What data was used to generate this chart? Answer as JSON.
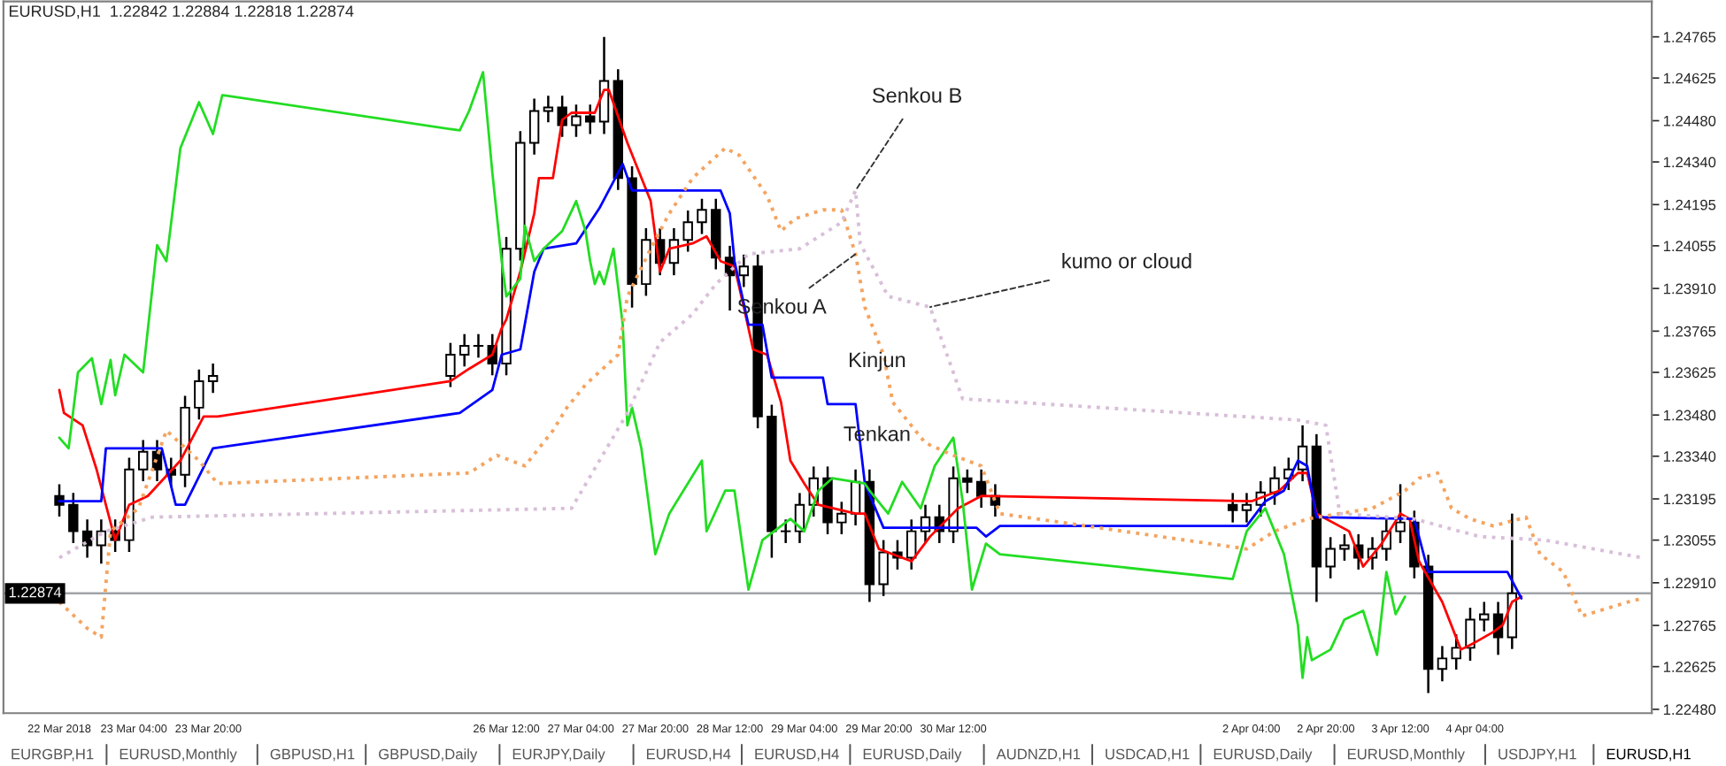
{
  "chart_data": {
    "type": "candlestick",
    "title": "EURUSD,H1  1.22842 1.22884 1.22818 1.22874",
    "xlim": [
      "2018-03-22T00:00",
      "2018-04-05T18:00"
    ],
    "xticks": [
      {
        "value": "2018-03-22T12:00",
        "label": "22 Mar 2018"
      },
      {
        "value": "2018-03-23T04:00",
        "label": "23 Mar 04:00"
      },
      {
        "value": "2018-03-23T20:00",
        "label": "23 Mar 20:00"
      },
      {
        "value": "2018-03-26T12:00",
        "label": "26 Mar 12:00"
      },
      {
        "value": "2018-03-27T04:00",
        "label": "27 Mar 04:00"
      },
      {
        "value": "2018-03-27T20:00",
        "label": "27 Mar 20:00"
      },
      {
        "value": "2018-03-28T12:00",
        "label": "28 Mar 12:00"
      },
      {
        "value": "2018-03-29T04:00",
        "label": "29 Mar 04:00"
      },
      {
        "value": "2018-03-29T20:00",
        "label": "29 Mar 20:00"
      },
      {
        "value": "2018-03-30T12:00",
        "label": "30 Mar 12:00"
      },
      {
        "value": "2018-04-02T04:00",
        "label": "2 Apr 04:00"
      },
      {
        "value": "2018-04-02T20:00",
        "label": "2 Apr 20:00"
      },
      {
        "value": "2018-04-03T12:00",
        "label": "3 Apr 12:00"
      },
      {
        "value": "2018-04-04T04:00",
        "label": "4 Apr 04:00"
      }
    ],
    "ylim": [
      1.22467,
      1.24885
    ],
    "yticks": [
      {
        "value": 1.2248,
        "label": "1.22480"
      },
      {
        "value": 1.22625,
        "label": "1.22625"
      },
      {
        "value": 1.22765,
        "label": "1.22765"
      },
      {
        "value": 1.2291,
        "label": "1.22910"
      },
      {
        "value": 1.23055,
        "label": "1.23055"
      },
      {
        "value": 1.23195,
        "label": "1.23195"
      },
      {
        "value": 1.2334,
        "label": "1.23340"
      },
      {
        "value": 1.2348,
        "label": "1.23480"
      },
      {
        "value": 1.23625,
        "label": "1.23625"
      },
      {
        "value": 1.23765,
        "label": "1.23765"
      },
      {
        "value": 1.2391,
        "label": "1.23910"
      },
      {
        "value": 1.24055,
        "label": "1.24055"
      },
      {
        "value": 1.24195,
        "label": "1.24195"
      },
      {
        "value": 1.2434,
        "label": "1.24340"
      },
      {
        "value": 1.2448,
        "label": "1.24480"
      },
      {
        "value": 1.24625,
        "label": "1.24625"
      },
      {
        "value": 1.24765,
        "label": "1.24765"
      }
    ],
    "series": [
      {
        "color": "#000000",
        "x": [
          "2018-03-22T12:00",
          "2018-03-22T15:00",
          "2018-03-22T18:00",
          "2018-03-22T21:00",
          "2018-03-23T00:00",
          "2018-03-23T03:00",
          "2018-03-23T06:00",
          "2018-03-23T09:00",
          "2018-03-23T12:00",
          "2018-03-23T15:00",
          "2018-03-23T18:00",
          "2018-03-23T21:00",
          "2018-03-26T00:00",
          "2018-03-26T03:00",
          "2018-03-26T06:00",
          "2018-03-26T09:00",
          "2018-03-26T12:00",
          "2018-03-26T15:00",
          "2018-03-26T18:00",
          "2018-03-26T21:00",
          "2018-03-27T00:00",
          "2018-03-27T03:00",
          "2018-03-27T06:00",
          "2018-03-27T09:00",
          "2018-03-27T12:00",
          "2018-03-27T15:00",
          "2018-03-27T18:00",
          "2018-03-27T21:00",
          "2018-03-28T00:00",
          "2018-03-28T03:00",
          "2018-03-28T06:00",
          "2018-03-28T09:00",
          "2018-03-28T12:00",
          "2018-03-28T15:00",
          "2018-03-28T18:00",
          "2018-03-28T21:00",
          "2018-03-29T00:00",
          "2018-03-29T03:00",
          "2018-03-29T06:00",
          "2018-03-29T09:00",
          "2018-03-29T12:00",
          "2018-03-29T15:00",
          "2018-03-29T18:00",
          "2018-03-29T21:00",
          "2018-03-30T00:00",
          "2018-03-30T03:00",
          "2018-03-30T06:00",
          "2018-03-30T09:00",
          "2018-03-30T12:00",
          "2018-03-30T15:00",
          "2018-03-30T18:00",
          "2018-03-30T21:00",
          "2018-04-02T00:00",
          "2018-04-02T03:00",
          "2018-04-02T06:00",
          "2018-04-02T09:00",
          "2018-04-02T12:00",
          "2018-04-02T15:00",
          "2018-04-02T18:00",
          "2018-04-02T21:00",
          "2018-04-03T00:00",
          "2018-04-03T03:00",
          "2018-04-03T06:00",
          "2018-04-03T09:00",
          "2018-04-03T12:00",
          "2018-04-03T15:00",
          "2018-04-03T18:00",
          "2018-04-03T21:00",
          "2018-04-04T00:00",
          "2018-04-04T03:00",
          "2018-04-04T06:00",
          "2018-04-04T09:00",
          "2018-04-04T12:00"
        ],
        "ohlc": [
          [
            1.23205,
            1.23245,
            1.23135,
            1.23175
          ],
          [
            1.23175,
            1.23215,
            1.23045,
            1.23085
          ],
          [
            1.23085,
            1.23125,
            1.22995,
            1.23037
          ],
          [
            1.23037,
            1.23125,
            1.22975,
            1.23085
          ],
          [
            1.23085,
            1.23125,
            1.23015,
            1.23055
          ],
          [
            1.23055,
            1.23335,
            1.23015,
            1.23295
          ],
          [
            1.23295,
            1.23395,
            1.23255,
            1.23355
          ],
          [
            1.23355,
            1.23395,
            1.23255,
            1.23295
          ],
          [
            1.23295,
            1.23335,
            1.23235,
            1.23277
          ],
          [
            1.23277,
            1.23545,
            1.23235,
            1.23505
          ],
          [
            1.23505,
            1.23635,
            1.23465,
            1.23595
          ],
          [
            1.23595,
            1.23655,
            1.23555,
            1.23613
          ],
          [
            1.23613,
            1.23725,
            1.23575,
            1.23685
          ],
          [
            1.23685,
            1.23755,
            1.23645,
            1.23715
          ],
          [
            1.23715,
            1.23755,
            1.23675,
            1.23715
          ],
          [
            1.23715,
            1.23755,
            1.23615,
            1.23655
          ],
          [
            1.23655,
            1.24085,
            1.23615,
            1.24045
          ],
          [
            1.24045,
            1.24445,
            1.24005,
            1.24405
          ],
          [
            1.24405,
            1.24555,
            1.24365,
            1.24513
          ],
          [
            1.24513,
            1.24565,
            1.24475,
            1.24525
          ],
          [
            1.24525,
            1.24565,
            1.24425,
            1.24465
          ],
          [
            1.24465,
            1.24535,
            1.24425,
            1.24495
          ],
          [
            1.24495,
            1.24535,
            1.24435,
            1.24477
          ],
          [
            1.24477,
            1.24765,
            1.24435,
            1.24615
          ],
          [
            1.24615,
            1.24655,
            1.24245,
            1.24285
          ],
          [
            1.24285,
            1.24325,
            1.23845,
            1.23925
          ],
          [
            1.23925,
            1.24115,
            1.23885,
            1.24075
          ],
          [
            1.24075,
            1.24115,
            1.23955,
            1.23997
          ],
          [
            1.23997,
            1.24115,
            1.23955,
            1.24075
          ],
          [
            1.24075,
            1.24175,
            1.24035,
            1.24135
          ],
          [
            1.24135,
            1.24215,
            1.24095,
            1.24177
          ],
          [
            1.24177,
            1.24215,
            1.23975,
            1.24015
          ],
          [
            1.24015,
            1.24055,
            1.23835,
            1.23955
          ],
          [
            1.23955,
            1.24025,
            1.23915,
            1.23985
          ],
          [
            1.23985,
            1.24025,
            1.23435,
            1.23475
          ],
          [
            1.23475,
            1.23515,
            1.22995,
            1.23085
          ],
          [
            1.23085,
            1.23125,
            1.23045,
            1.23085
          ],
          [
            1.23085,
            1.23215,
            1.23045,
            1.23175
          ],
          [
            1.23175,
            1.23305,
            1.23135,
            1.23265
          ],
          [
            1.23265,
            1.23305,
            1.23075,
            1.23115
          ],
          [
            1.23115,
            1.23185,
            1.23075,
            1.23145
          ],
          [
            1.23145,
            1.23295,
            1.23105,
            1.23253
          ],
          [
            1.23253,
            1.23295,
            1.22845,
            1.22905
          ],
          [
            1.22905,
            1.23055,
            1.22865,
            1.23013
          ],
          [
            1.23013,
            1.23055,
            1.22955,
            1.22995
          ],
          [
            1.22995,
            1.23125,
            1.22955,
            1.23085
          ],
          [
            1.23085,
            1.23175,
            1.23045,
            1.23133
          ],
          [
            1.23133,
            1.23175,
            1.23045,
            1.23085
          ],
          [
            1.23085,
            1.23305,
            1.23045,
            1.23265
          ],
          [
            1.23265,
            1.23295,
            1.23215,
            1.23253
          ],
          [
            1.23253,
            1.23295,
            1.23165,
            1.23205
          ],
          [
            1.23205,
            1.23245,
            1.23135,
            1.23175
          ],
          [
            1.23175,
            1.23215,
            1.23115,
            1.23157
          ],
          [
            1.23157,
            1.23215,
            1.23115,
            1.23175
          ],
          [
            1.23175,
            1.23255,
            1.23135,
            1.23217
          ],
          [
            1.23217,
            1.23305,
            1.23175,
            1.23265
          ],
          [
            1.23265,
            1.23335,
            1.23225,
            1.23295
          ],
          [
            1.23295,
            1.23445,
            1.23255,
            1.23373
          ],
          [
            1.23373,
            1.23415,
            1.22845,
            1.22965
          ],
          [
            1.22965,
            1.23065,
            1.22925,
            1.23025
          ],
          [
            1.23025,
            1.23075,
            1.22985,
            1.23037
          ],
          [
            1.23037,
            1.23075,
            1.22955,
            1.22995
          ],
          [
            1.22995,
            1.23065,
            1.22955,
            1.23025
          ],
          [
            1.23025,
            1.23125,
            1.22985,
            1.23085
          ],
          [
            1.23085,
            1.23245,
            1.23045,
            1.23115
          ],
          [
            1.23115,
            1.23155,
            1.22925,
            1.22965
          ],
          [
            1.22965,
            1.23005,
            1.22535,
            1.22617
          ],
          [
            1.22617,
            1.22695,
            1.22575,
            1.22653
          ],
          [
            1.22653,
            1.22735,
            1.22615,
            1.22689
          ],
          [
            1.22689,
            1.22825,
            1.22645,
            1.22785
          ],
          [
            1.22785,
            1.22845,
            1.22745,
            1.22803
          ],
          [
            1.22803,
            1.22845,
            1.22665,
            1.22725
          ],
          [
            1.22725,
            1.23145,
            1.22685,
            1.22874
          ]
        ]
      },
      {
        "type": "line",
        "color": "#ff0000",
        "line_style": "solid",
        "x": [
          "2018-03-22T12:00",
          "2018-03-22T13:00",
          "2018-03-22T17:00",
          "2018-03-22T20:00",
          "2018-03-23T00:00",
          "2018-03-23T03:00",
          "2018-03-23T07:00",
          "2018-03-23T14:00",
          "2018-03-23T19:00",
          "2018-03-23T22:00",
          "2018-03-26T00:00",
          "2018-03-26T04:00",
          "2018-03-26T09:00",
          "2018-03-26T11:00",
          "2018-03-26T12:00",
          "2018-03-26T15:00",
          "2018-03-26T18:00",
          "2018-03-26T19:00",
          "2018-03-26T22:00",
          "2018-03-27T00:00",
          "2018-03-27T02:00",
          "2018-03-27T07:00",
          "2018-03-27T09:00",
          "2018-03-27T10:00",
          "2018-03-27T14:00",
          "2018-03-27T19:00",
          "2018-03-27T21:00",
          "2018-03-27T23:00",
          "2018-03-28T04:00",
          "2018-03-28T07:00",
          "2018-03-28T10:00",
          "2018-03-28T13:00",
          "2018-03-28T15:00",
          "2018-03-28T17:00",
          "2018-03-28T20:00",
          "2018-03-28T23:00",
          "2018-03-29T01:00",
          "2018-03-29T04:00",
          "2018-03-29T07:00",
          "2018-03-29T15:00",
          "2018-03-29T17:00",
          "2018-03-29T20:00",
          "2018-03-30T03:00",
          "2018-03-30T07:00",
          "2018-03-30T13:00",
          "2018-03-30T18:00",
          "2018-04-02T04:00",
          "2018-04-02T10:00",
          "2018-04-02T14:00",
          "2018-04-02T16:00",
          "2018-04-02T18:00",
          "2018-04-03T01:00",
          "2018-04-03T04:00",
          "2018-04-03T08:00",
          "2018-04-03T12:00",
          "2018-04-03T14:00",
          "2018-04-03T16:00",
          "2018-04-03T21:00",
          "2018-04-04T01:00",
          "2018-04-04T04:00",
          "2018-04-04T08:00",
          "2018-04-04T10:00",
          "2018-04-04T12:00",
          "2018-04-04T14:00"
        ],
        "values": [
          1.23565,
          1.23487,
          1.23445,
          1.23295,
          1.23055,
          1.23175,
          1.23205,
          1.23325,
          1.23475,
          1.23475,
          1.23595,
          1.23637,
          1.23685,
          1.23775,
          1.23805,
          1.23967,
          1.24165,
          1.24285,
          1.24285,
          1.24483,
          1.24507,
          1.24507,
          1.24585,
          1.24585,
          1.24405,
          1.24207,
          1.23967,
          1.24045,
          1.24063,
          1.24087,
          1.24003,
          1.23985,
          1.23847,
          1.23703,
          1.23685,
          1.23523,
          1.23325,
          1.23247,
          1.23175,
          1.23145,
          1.23145,
          1.23025,
          1.22983,
          1.23067,
          1.23163,
          1.23205,
          1.23187,
          1.23223,
          1.23283,
          1.23283,
          1.23145,
          1.23085,
          1.22965,
          1.23043,
          1.23145,
          1.23127,
          1.22983,
          1.22845,
          1.22683,
          1.22707,
          1.22743,
          1.22767,
          1.22845,
          1.22863
        ]
      },
      {
        "type": "line",
        "color": "#0000ff",
        "line_style": "solid",
        "x": [
          "2018-03-22T12:00",
          "2018-03-22T21:00",
          "2018-03-22T22:00",
          "2018-03-23T10:00",
          "2018-03-23T13:00",
          "2018-03-23T15:00",
          "2018-03-23T21:00",
          "2018-03-26T02:00",
          "2018-03-26T09:00",
          "2018-03-26T11:00",
          "2018-03-26T15:00",
          "2018-03-26T18:00",
          "2018-03-26T20:00",
          "2018-03-27T03:00",
          "2018-03-27T08:00",
          "2018-03-27T13:00",
          "2018-03-27T15:00",
          "2018-03-28T10:00",
          "2018-03-28T12:00",
          "2018-03-28T13:00",
          "2018-03-28T16:00",
          "2018-03-28T19:00",
          "2018-03-28T21:00",
          "2018-03-29T08:00",
          "2018-03-29T09:00",
          "2018-03-29T15:00",
          "2018-03-29T17:00",
          "2018-03-29T21:00",
          "2018-03-30T17:00",
          "2018-03-30T19:00",
          "2018-03-30T22:00",
          "2018-04-02T03:00",
          "2018-04-02T07:00",
          "2018-04-02T11:00",
          "2018-04-02T14:00",
          "2018-04-02T16:00",
          "2018-04-02T18:00",
          "2018-04-03T15:00",
          "2018-04-03T18:00",
          "2018-04-04T11:00",
          "2018-04-04T13:00",
          "2018-04-04T14:00"
        ],
        "values": [
          1.23187,
          1.23187,
          1.23367,
          1.23367,
          1.23175,
          1.23175,
          1.23367,
          1.23487,
          1.23565,
          1.23685,
          1.23703,
          1.23967,
          1.24045,
          1.24063,
          1.24183,
          1.24333,
          1.24243,
          1.24243,
          1.24165,
          1.24003,
          1.23787,
          1.23787,
          1.23607,
          1.23607,
          1.23517,
          1.23517,
          1.23247,
          1.23097,
          1.23097,
          1.23067,
          1.23103,
          1.23103,
          1.23187,
          1.23223,
          1.23325,
          1.23307,
          1.23133,
          1.23127,
          1.22947,
          1.22947,
          1.22887,
          1.22857
        ]
      },
      {
        "type": "line",
        "color": "#22dd22",
        "line_style": "solid",
        "x": [
          "2018-03-22T12:00",
          "2018-03-22T14:00",
          "2018-03-22T16:00",
          "2018-03-22T19:00",
          "2018-03-22T21:00",
          "2018-03-22T23:00",
          "2018-03-23T00:00",
          "2018-03-23T02:00",
          "2018-03-23T06:00",
          "2018-03-23T09:00",
          "2018-03-23T11:00",
          "2018-03-23T14:00",
          "2018-03-23T18:00",
          "2018-03-23T21:00",
          "2018-03-23T23:00",
          "2018-03-26T02:00",
          "2018-03-26T04:00",
          "2018-03-26T07:00",
          "2018-03-26T09:00",
          "2018-03-26T11:00",
          "2018-03-26T12:00",
          "2018-03-26T15:00",
          "2018-03-26T16:00",
          "2018-03-26T18:00",
          "2018-03-26T20:00",
          "2018-03-27T00:00",
          "2018-03-27T03:00",
          "2018-03-27T05:00",
          "2018-03-27T06:00",
          "2018-03-27T07:00",
          "2018-03-27T08:00",
          "2018-03-27T09:00",
          "2018-03-27T11:00",
          "2018-03-27T13:00",
          "2018-03-27T14:00",
          "2018-03-27T15:00",
          "2018-03-27T17:00",
          "2018-03-27T20:00",
          "2018-03-27T23:00",
          "2018-03-28T06:00",
          "2018-03-28T07:00",
          "2018-03-28T11:00",
          "2018-03-28T13:00",
          "2018-03-28T16:00",
          "2018-03-28T19:00",
          "2018-03-29T01:00",
          "2018-03-29T04:00",
          "2018-03-29T07:00",
          "2018-03-29T10:00",
          "2018-03-29T17:00",
          "2018-03-29T18:00",
          "2018-03-29T22:00",
          "2018-03-30T01:00",
          "2018-03-30T05:00",
          "2018-03-30T08:00",
          "2018-03-30T12:00",
          "2018-03-30T14:00",
          "2018-03-30T16:00",
          "2018-03-30T19:00",
          "2018-03-30T22:00",
          "2018-04-02T00:00",
          "2018-04-02T03:00",
          "2018-04-02T07:00",
          "2018-04-02T09:00",
          "2018-04-02T11:00",
          "2018-04-02T14:00",
          "2018-04-02T15:00",
          "2018-04-02T16:00",
          "2018-04-02T17:00",
          "2018-04-02T21:00",
          "2018-04-03T00:00",
          "2018-04-03T04:00",
          "2018-04-03T07:00",
          "2018-04-03T09:00",
          "2018-04-03T11:00",
          "2018-04-03T13:00"
        ],
        "values": [
          1.23403,
          1.23367,
          1.23625,
          1.23673,
          1.23517,
          1.23667,
          1.23547,
          1.23685,
          1.23625,
          1.24057,
          1.24003,
          1.24387,
          1.24543,
          1.24435,
          1.24567,
          1.24447,
          1.24513,
          1.24645,
          1.24303,
          1.24003,
          1.23883,
          1.23943,
          1.24123,
          1.24003,
          1.24045,
          1.24105,
          1.24207,
          1.24105,
          1.24003,
          1.23925,
          1.23967,
          1.23925,
          1.24045,
          1.23787,
          1.23445,
          1.23505,
          1.23367,
          1.23007,
          1.23145,
          1.23325,
          1.23085,
          1.23223,
          1.23223,
          1.22887,
          1.23055,
          1.23127,
          1.23085,
          1.23223,
          1.23265,
          1.23247,
          1.23223,
          1.23145,
          1.23253,
          1.23163,
          1.23307,
          1.23403,
          1.23187,
          1.22887,
          1.23043,
          1.23007,
          1.22923,
          1.23085,
          1.23163,
          1.23085,
          1.23007,
          1.22767,
          1.22587,
          1.22725,
          1.22647,
          1.22683,
          1.22785,
          1.22815,
          1.22665,
          1.22947,
          1.22803,
          1.22863
        ]
      },
      {
        "type": "line",
        "color": "#f4a460",
        "line_style": "dotted",
        "x": [
          "2018-03-22T12:00",
          "2018-03-22T18:00",
          "2018-03-22T21:00",
          "2018-03-22T23:00",
          "2018-03-23T05:00",
          "2018-03-23T11:00",
          "2018-03-23T18:00",
          "2018-03-23T22:00",
          "2018-03-26T04:00",
          "2018-03-26T10:00",
          "2018-03-26T16:00",
          "2018-03-26T22:00",
          "2018-03-27T01:00",
          "2018-03-27T05:00",
          "2018-03-27T12:00",
          "2018-03-27T14:00",
          "2018-03-27T19:00",
          "2018-03-27T23:00",
          "2018-03-28T04:00",
          "2018-03-28T11:00",
          "2018-03-28T14:00",
          "2018-03-28T20:00",
          "2018-03-28T23:00",
          "2018-03-29T02:00",
          "2018-03-29T08:00",
          "2018-03-29T12:00",
          "2018-03-29T15:00",
          "2018-03-29T17:00",
          "2018-03-29T21:00",
          "2018-03-29T23:00",
          "2018-03-30T06:00",
          "2018-03-30T12:00",
          "2018-03-30T18:00",
          "2018-03-30T22:00",
          "2018-04-02T03:00",
          "2018-04-02T09:00",
          "2018-04-02T16:00",
          "2018-04-02T23:00",
          "2018-04-03T06:00",
          "2018-04-03T13:00",
          "2018-04-03T16:00",
          "2018-04-03T20:00",
          "2018-04-03T23:00",
          "2018-04-04T03:00",
          "2018-04-04T08:00",
          "2018-04-04T15:00",
          "2018-04-04T18:00",
          "2018-04-04T23:00",
          "2018-04-05T03:00",
          "2018-04-05T13:00",
          "2018-04-05T16:00"
        ],
        "values": [
          1.22845,
          1.22755,
          1.22725,
          1.23085,
          1.23163,
          1.23427,
          1.23325,
          1.23247,
          1.23283,
          1.23343,
          1.23307,
          1.23427,
          1.23505,
          1.23583,
          1.23685,
          1.23883,
          1.24045,
          1.24165,
          1.24285,
          1.24387,
          1.24363,
          1.24225,
          1.24105,
          1.24147,
          1.24177,
          1.24177,
          1.24027,
          1.23847,
          1.23685,
          1.23523,
          1.23385,
          1.23343,
          1.23307,
          1.23145,
          1.23025,
          1.23085,
          1.23127,
          1.23145,
          1.23163,
          1.23223,
          1.23265,
          1.23283,
          1.23163,
          1.23127,
          1.23103,
          1.23133,
          1.23007,
          1.22947,
          1.22797,
          1.22845,
          1.22857
        ]
      },
      {
        "type": "line",
        "color": "#d8bfd8",
        "line_style": "dotted",
        "x": [
          "2018-03-22T12:00",
          "2018-03-22T22:00",
          "2018-03-23T08:00",
          "2018-03-27T02:00",
          "2018-03-27T14:00",
          "2018-03-27T21:00",
          "2018-03-28T04:00",
          "2018-03-28T09:00",
          "2018-03-28T16:00",
          "2018-03-29T03:00",
          "2018-03-29T12:00",
          "2018-03-29T15:00",
          "2018-03-29T16:00",
          "2018-03-29T22:00",
          "2018-03-30T07:00",
          "2018-03-30T14:00",
          "2018-04-02T14:00",
          "2018-04-02T20:00",
          "2018-04-02T23:00",
          "2018-04-03T15:00",
          "2018-04-04T05:00",
          "2018-04-04T19:00",
          "2018-04-05T16:00"
        ],
        "values": [
          1.22995,
          1.23085,
          1.23133,
          1.23163,
          1.23487,
          1.23727,
          1.23823,
          1.23925,
          1.24027,
          1.24045,
          1.24135,
          1.24243,
          1.24063,
          1.23883,
          1.23847,
          1.23535,
          1.23463,
          1.23445,
          1.23145,
          1.23127,
          1.23067,
          1.23055,
          1.22995
        ]
      }
    ],
    "ref_lines": [
      {
        "axis": "y",
        "value": 1.22874,
        "label": "1.22874",
        "color": "#a0a4a8"
      }
    ],
    "annotations": [
      {
        "text": "Senkou B",
        "x": "2018-03-29T15:00",
        "y": 1.24243
      },
      {
        "text": "Senkou A",
        "x": "2018-03-29T15:00",
        "y": 1.24027
      },
      {
        "text": "kumo or cloud",
        "x": "2018-03-30T07:00",
        "y": 1.23847
      },
      "Kinjun",
      "Tenkan",
      "EURGBP,H1",
      "EURUSD,Monthly",
      "GBPUSD,H1",
      "GBPUSD,Daily",
      "EURJPY,Daily",
      "EURUSD,H4",
      "EURUSD,H4",
      "EURUSD,Daily",
      "AUDNZD,H1",
      "USDCAD,H1",
      "EURUSD,Daily",
      "EURUSD,Monthly",
      "USDJPY,H1",
      "EURUSD,H1"
    ]
  }
}
